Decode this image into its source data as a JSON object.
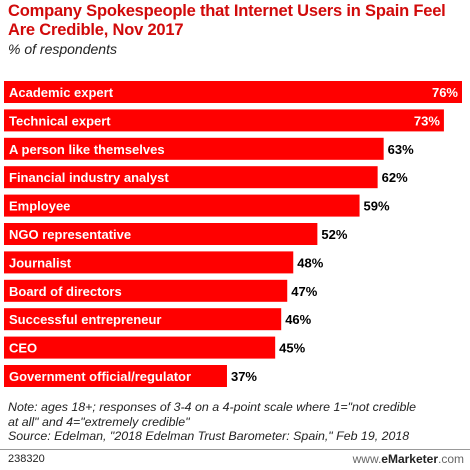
{
  "header": {
    "title": "Company Spokespeople that Internet Users in Spain Feel Are Credible, Nov 2017",
    "subtitle": "% of respondents"
  },
  "chart_data": {
    "type": "bar",
    "orientation": "horizontal",
    "title": "Company Spokespeople that Internet Users in Spain Feel Are Credible, Nov 2017",
    "subtitle": "% of respondents",
    "categories": [
      "Academic expert",
      "Technical expert",
      "A person like themselves",
      "Financial industry analyst",
      "Employee",
      "NGO representative",
      "Journalist",
      "Board of directors",
      "Successful entrepreneur",
      "CEO",
      "Government official/regulator"
    ],
    "values": [
      76,
      73,
      63,
      62,
      59,
      52,
      48,
      47,
      46,
      45,
      37
    ],
    "value_labels": [
      "76%",
      "73%",
      "63%",
      "62%",
      "59%",
      "52%",
      "48%",
      "47%",
      "46%",
      "45%",
      "37%"
    ],
    "bar_color": "#ff0000",
    "xlim": [
      0,
      76
    ],
    "grid": false,
    "legend": "none"
  },
  "note": {
    "line1": "Note: ages 18+; responses of 3-4 on a 4-point scale where 1=\"not credible",
    "line2": "at all\" and 4=\"extremely credible\"",
    "line3": "Source: Edelman, \"2018 Edelman Trust Barometer: Spain,\" Feb 19, 2018"
  },
  "footer": {
    "chart_id": "238320",
    "brand_prefix": "www.",
    "brand_name": "eMarketer",
    "brand_suffix": ".com"
  }
}
